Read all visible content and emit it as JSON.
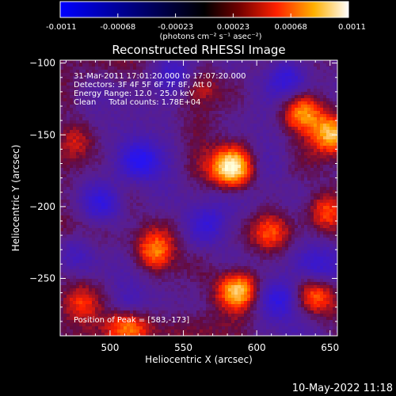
{
  "chart_data": {
    "type": "heatmap",
    "title": "Reconstructed RHESSI Image",
    "xlabel": "Heliocentric X (arcsec)",
    "ylabel": "Heliocentric Y (arcsec)",
    "xlim": [
      466,
      655
    ],
    "ylim": [
      -290,
      -98
    ],
    "x_ticks": [
      500,
      550,
      600,
      650
    ],
    "y_ticks": [
      -100,
      -150,
      -200,
      -250
    ],
    "colorbar": {
      "min": -0.0011,
      "max": 0.0011,
      "ticks": [
        "-0.0011",
        "-0.00068",
        "-0.00023",
        "0.00023",
        "0.00068",
        "0.0011"
      ],
      "units": "(photons cm⁻² s⁻¹ asec⁻²)"
    },
    "annotations": {
      "time_range": "31-Mar-2011 17:01:20.000 to 17:07:20.000",
      "detectors": "Detectors: 3F 4F 5F 6F 7F 8F, Att 0",
      "energy_range": "Energy Range: 12.0 - 25.0 keV",
      "method_counts": "Clean     Total counts: 1.78E+04",
      "peak": "Position of Peak = [583,-173]"
    },
    "peak_position": [
      583,
      -173
    ],
    "bright_regions": [
      {
        "x": 583,
        "y": -173,
        "level": 1.0
      },
      {
        "x": 587,
        "y": -258,
        "level": 0.85
      },
      {
        "x": 530,
        "y": -232,
        "level": 0.65
      },
      {
        "x": 512,
        "y": -282,
        "level": 0.6
      },
      {
        "x": 631,
        "y": -135,
        "level": 0.7
      },
      {
        "x": 651,
        "y": -150,
        "level": 0.75
      },
      {
        "x": 638,
        "y": -262,
        "level": 0.65
      },
      {
        "x": 648,
        "y": -203,
        "level": 0.55
      },
      {
        "x": 560,
        "y": -118,
        "level": 0.45
      },
      {
        "x": 476,
        "y": -152,
        "level": 0.45
      },
      {
        "x": 478,
        "y": -267,
        "level": 0.45
      },
      {
        "x": 610,
        "y": -218,
        "level": 0.35
      }
    ],
    "dim_regions": [
      {
        "x": 520,
        "y": -168,
        "level": -0.7
      },
      {
        "x": 545,
        "y": -108,
        "level": -0.5
      },
      {
        "x": 622,
        "y": -110,
        "level": -0.6
      },
      {
        "x": 513,
        "y": -267,
        "level": -0.55
      },
      {
        "x": 615,
        "y": -265,
        "level": -0.6
      },
      {
        "x": 567,
        "y": -212,
        "level": -0.45
      },
      {
        "x": 495,
        "y": -198,
        "level": -0.5
      },
      {
        "x": 640,
        "y": -240,
        "level": -0.4
      },
      {
        "x": 475,
        "y": -232,
        "level": -0.4
      }
    ]
  },
  "footer": {
    "timestamp": "10-May-2022 11:18"
  }
}
